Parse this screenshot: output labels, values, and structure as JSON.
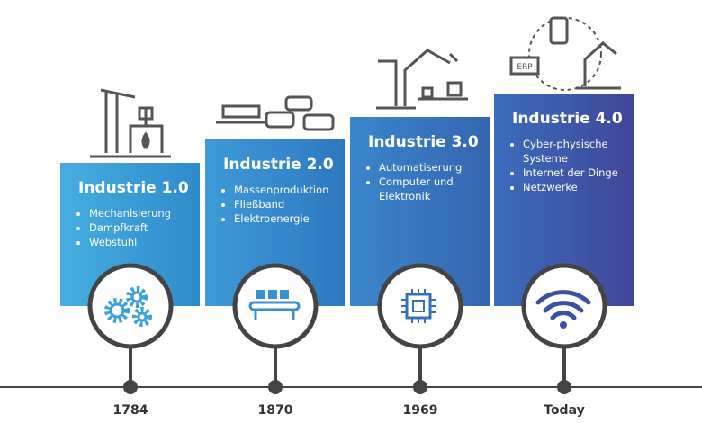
{
  "stages": [
    {
      "title": "Industrie 1.0",
      "bullets": [
        "Mechanisierung",
        "Dampfkraft",
        "Webstuhl"
      ],
      "year": "1784"
    },
    {
      "title": "Industrie 2.0",
      "bullets": [
        "Massenproduktion",
        "Fließband",
        "Elektroenergie"
      ],
      "year": "1870"
    },
    {
      "title": "Industrie 3.0",
      "bullets": [
        "Automatiserung",
        "Computer und Elektronik"
      ],
      "year": "1969"
    },
    {
      "title": "Industrie 4.0",
      "bullets": [
        "Cyber-physische Systeme",
        "Internet der Dinge",
        "Netzwerke"
      ],
      "year": "Today"
    }
  ],
  "icon_label": "ERP"
}
